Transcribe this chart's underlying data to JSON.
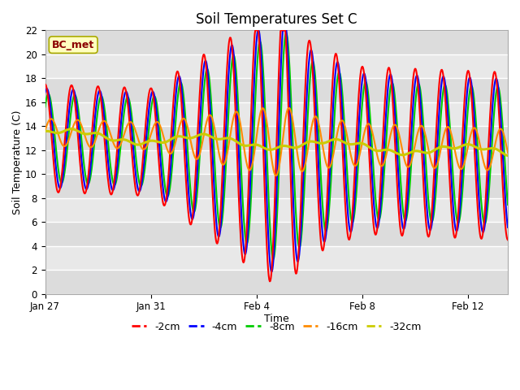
{
  "title": "Soil Temperatures Set C",
  "xlabel": "Time",
  "ylabel": "Soil Temperature (C)",
  "ylim": [
    0,
    22
  ],
  "yticks": [
    0,
    2,
    4,
    6,
    8,
    10,
    12,
    14,
    16,
    18,
    20,
    22
  ],
  "annotation": "BC_met",
  "annotation_color": "#8B0000",
  "annotation_bg": "#FFFFC0",
  "series_colors": {
    "-2cm": "#FF0000",
    "-4cm": "#0000FF",
    "-8cm": "#00CC00",
    "-16cm": "#FF8C00",
    "-32cm": "#CCCC00"
  },
  "x_tick_labels": [
    "Jan 27",
    "Jan 31",
    "Feb 4",
    "Feb 8",
    "Feb 12"
  ],
  "x_tick_positions": [
    0,
    4,
    8,
    12,
    16
  ],
  "total_days": 17.5,
  "plot_bg": "#E8E8E8",
  "band_colors": [
    "#DCDCDC",
    "#E8E8E8"
  ]
}
